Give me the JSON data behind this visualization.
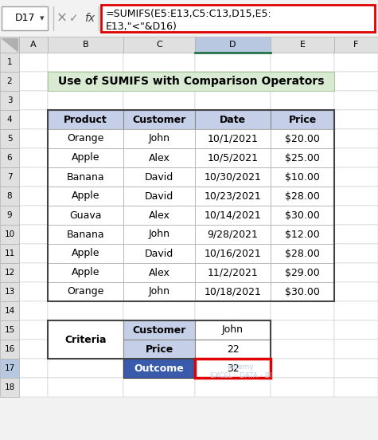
{
  "formula_bar_cell": "D17",
  "formula_bar_text_line1": "=SUMIFS(E5:E13,C5:C13,D15,E5:",
  "formula_bar_text_line2": "E13,\"<\"&D16)",
  "title": "Use of SUMIFS with Comparison Operators",
  "title_bg": "#d9ead3",
  "title_border": "#a8c9a0",
  "header_row": [
    "Product",
    "Customer",
    "Date",
    "Price"
  ],
  "header_bg": "#c5cfe8",
  "table_data": [
    [
      "Orange",
      "John",
      "10/1/2021",
      "$20.00"
    ],
    [
      "Apple",
      "Alex",
      "10/5/2021",
      "$25.00"
    ],
    [
      "Banana",
      "David",
      "10/30/2021",
      "$10.00"
    ],
    [
      "Apple",
      "David",
      "10/23/2021",
      "$28.00"
    ],
    [
      "Guava",
      "Alex",
      "10/14/2021",
      "$30.00"
    ],
    [
      "Banana",
      "John",
      "9/28/2021",
      "$12.00"
    ],
    [
      "Apple",
      "David",
      "10/16/2021",
      "$28.00"
    ],
    [
      "Apple",
      "Alex",
      "11/2/2021",
      "$29.00"
    ],
    [
      "Orange",
      "John",
      "10/18/2021",
      "$30.00"
    ]
  ],
  "criteria_label": "Criteria",
  "criteria_rows": [
    {
      "label": "Customer",
      "value": "John"
    },
    {
      "label": "Price",
      "value": "22"
    }
  ],
  "criteria_label_bg": "#c5cfe8",
  "outcome_label": "Outcome",
  "outcome_value": "32",
  "outcome_label_bg": "#3a5aac",
  "outcome_label_color": "#ffffff",
  "outcome_value_border": "#e00000",
  "formula_bar_border": "#e00000",
  "col_D_header_bg": "#b8c8e0",
  "col_header_bg": "#e0e0e0",
  "row_header_bg": "#e0e0e0",
  "row17_header_bg": "#b8c8e0",
  "grid_line_color": "#c0c0c0",
  "watermark_color": "#b0c8e0",
  "watermark_text": "eldemy\nEXCEL - DATA - BI"
}
